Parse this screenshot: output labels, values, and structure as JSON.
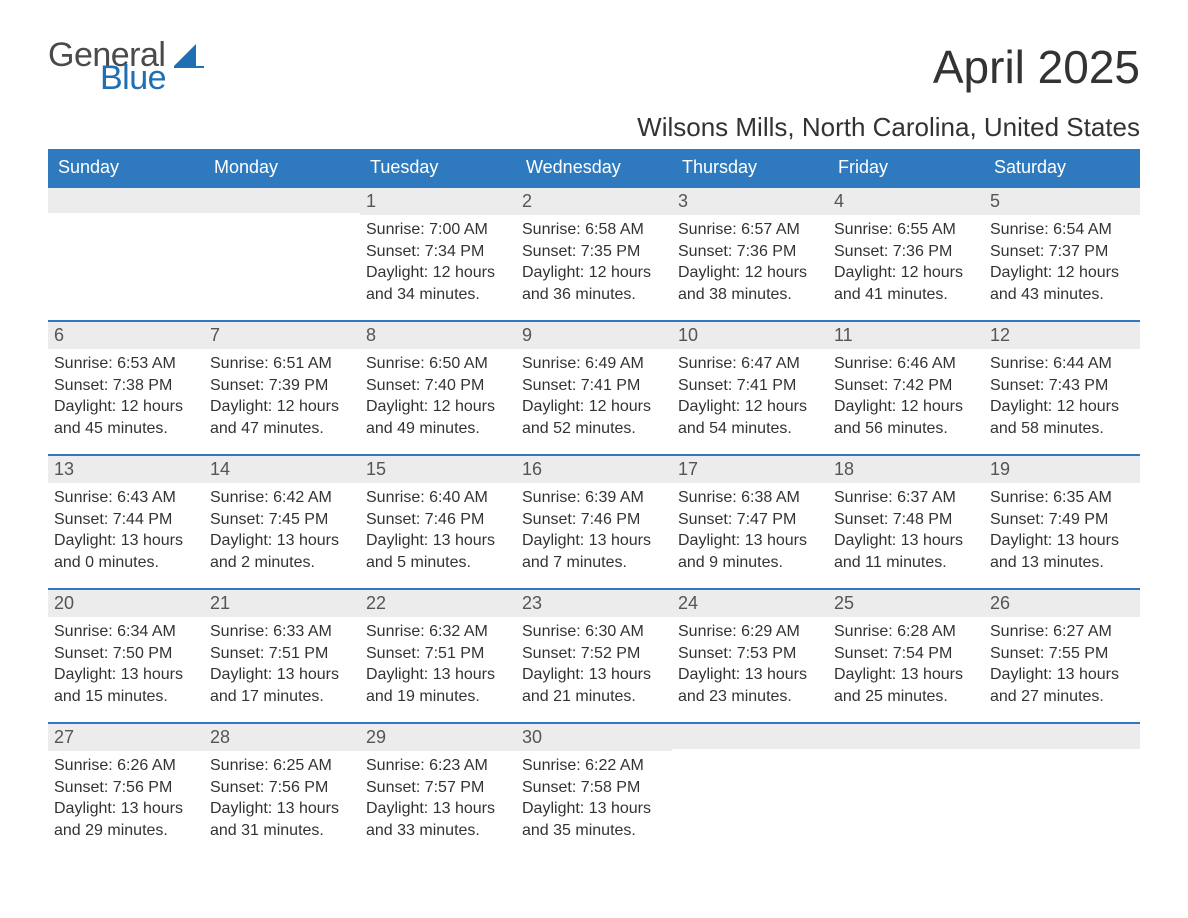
{
  "brand": {
    "word1": "General",
    "word2": "Blue",
    "accent_color": "#1f6fb2",
    "text_color": "#4a4a4a"
  },
  "title": "April 2025",
  "location": "Wilsons Mills, North Carolina, United States",
  "colors": {
    "header_bg": "#2f7abf",
    "header_text": "#ffffff",
    "daybar_bg": "#ececec",
    "daybar_border": "#2f7abf",
    "body_text": "#333333",
    "page_bg": "#ffffff"
  },
  "type": "calendar-table",
  "days_of_week": [
    "Sunday",
    "Monday",
    "Tuesday",
    "Wednesday",
    "Thursday",
    "Friday",
    "Saturday"
  ],
  "weeks": [
    [
      null,
      null,
      {
        "n": "1",
        "sunrise": "Sunrise: 7:00 AM",
        "sunset": "Sunset: 7:34 PM",
        "day": "Daylight: 12 hours and 34 minutes."
      },
      {
        "n": "2",
        "sunrise": "Sunrise: 6:58 AM",
        "sunset": "Sunset: 7:35 PM",
        "day": "Daylight: 12 hours and 36 minutes."
      },
      {
        "n": "3",
        "sunrise": "Sunrise: 6:57 AM",
        "sunset": "Sunset: 7:36 PM",
        "day": "Daylight: 12 hours and 38 minutes."
      },
      {
        "n": "4",
        "sunrise": "Sunrise: 6:55 AM",
        "sunset": "Sunset: 7:36 PM",
        "day": "Daylight: 12 hours and 41 minutes."
      },
      {
        "n": "5",
        "sunrise": "Sunrise: 6:54 AM",
        "sunset": "Sunset: 7:37 PM",
        "day": "Daylight: 12 hours and 43 minutes."
      }
    ],
    [
      {
        "n": "6",
        "sunrise": "Sunrise: 6:53 AM",
        "sunset": "Sunset: 7:38 PM",
        "day": "Daylight: 12 hours and 45 minutes."
      },
      {
        "n": "7",
        "sunrise": "Sunrise: 6:51 AM",
        "sunset": "Sunset: 7:39 PM",
        "day": "Daylight: 12 hours and 47 minutes."
      },
      {
        "n": "8",
        "sunrise": "Sunrise: 6:50 AM",
        "sunset": "Sunset: 7:40 PM",
        "day": "Daylight: 12 hours and 49 minutes."
      },
      {
        "n": "9",
        "sunrise": "Sunrise: 6:49 AM",
        "sunset": "Sunset: 7:41 PM",
        "day": "Daylight: 12 hours and 52 minutes."
      },
      {
        "n": "10",
        "sunrise": "Sunrise: 6:47 AM",
        "sunset": "Sunset: 7:41 PM",
        "day": "Daylight: 12 hours and 54 minutes."
      },
      {
        "n": "11",
        "sunrise": "Sunrise: 6:46 AM",
        "sunset": "Sunset: 7:42 PM",
        "day": "Daylight: 12 hours and 56 minutes."
      },
      {
        "n": "12",
        "sunrise": "Sunrise: 6:44 AM",
        "sunset": "Sunset: 7:43 PM",
        "day": "Daylight: 12 hours and 58 minutes."
      }
    ],
    [
      {
        "n": "13",
        "sunrise": "Sunrise: 6:43 AM",
        "sunset": "Sunset: 7:44 PM",
        "day": "Daylight: 13 hours and 0 minutes."
      },
      {
        "n": "14",
        "sunrise": "Sunrise: 6:42 AM",
        "sunset": "Sunset: 7:45 PM",
        "day": "Daylight: 13 hours and 2 minutes."
      },
      {
        "n": "15",
        "sunrise": "Sunrise: 6:40 AM",
        "sunset": "Sunset: 7:46 PM",
        "day": "Daylight: 13 hours and 5 minutes."
      },
      {
        "n": "16",
        "sunrise": "Sunrise: 6:39 AM",
        "sunset": "Sunset: 7:46 PM",
        "day": "Daylight: 13 hours and 7 minutes."
      },
      {
        "n": "17",
        "sunrise": "Sunrise: 6:38 AM",
        "sunset": "Sunset: 7:47 PM",
        "day": "Daylight: 13 hours and 9 minutes."
      },
      {
        "n": "18",
        "sunrise": "Sunrise: 6:37 AM",
        "sunset": "Sunset: 7:48 PM",
        "day": "Daylight: 13 hours and 11 minutes."
      },
      {
        "n": "19",
        "sunrise": "Sunrise: 6:35 AM",
        "sunset": "Sunset: 7:49 PM",
        "day": "Daylight: 13 hours and 13 minutes."
      }
    ],
    [
      {
        "n": "20",
        "sunrise": "Sunrise: 6:34 AM",
        "sunset": "Sunset: 7:50 PM",
        "day": "Daylight: 13 hours and 15 minutes."
      },
      {
        "n": "21",
        "sunrise": "Sunrise: 6:33 AM",
        "sunset": "Sunset: 7:51 PM",
        "day": "Daylight: 13 hours and 17 minutes."
      },
      {
        "n": "22",
        "sunrise": "Sunrise: 6:32 AM",
        "sunset": "Sunset: 7:51 PM",
        "day": "Daylight: 13 hours and 19 minutes."
      },
      {
        "n": "23",
        "sunrise": "Sunrise: 6:30 AM",
        "sunset": "Sunset: 7:52 PM",
        "day": "Daylight: 13 hours and 21 minutes."
      },
      {
        "n": "24",
        "sunrise": "Sunrise: 6:29 AM",
        "sunset": "Sunset: 7:53 PM",
        "day": "Daylight: 13 hours and 23 minutes."
      },
      {
        "n": "25",
        "sunrise": "Sunrise: 6:28 AM",
        "sunset": "Sunset: 7:54 PM",
        "day": "Daylight: 13 hours and 25 minutes."
      },
      {
        "n": "26",
        "sunrise": "Sunrise: 6:27 AM",
        "sunset": "Sunset: 7:55 PM",
        "day": "Daylight: 13 hours and 27 minutes."
      }
    ],
    [
      {
        "n": "27",
        "sunrise": "Sunrise: 6:26 AM",
        "sunset": "Sunset: 7:56 PM",
        "day": "Daylight: 13 hours and 29 minutes."
      },
      {
        "n": "28",
        "sunrise": "Sunrise: 6:25 AM",
        "sunset": "Sunset: 7:56 PM",
        "day": "Daylight: 13 hours and 31 minutes."
      },
      {
        "n": "29",
        "sunrise": "Sunrise: 6:23 AM",
        "sunset": "Sunset: 7:57 PM",
        "day": "Daylight: 13 hours and 33 minutes."
      },
      {
        "n": "30",
        "sunrise": "Sunrise: 6:22 AM",
        "sunset": "Sunset: 7:58 PM",
        "day": "Daylight: 13 hours and 35 minutes."
      },
      null,
      null,
      null
    ]
  ]
}
